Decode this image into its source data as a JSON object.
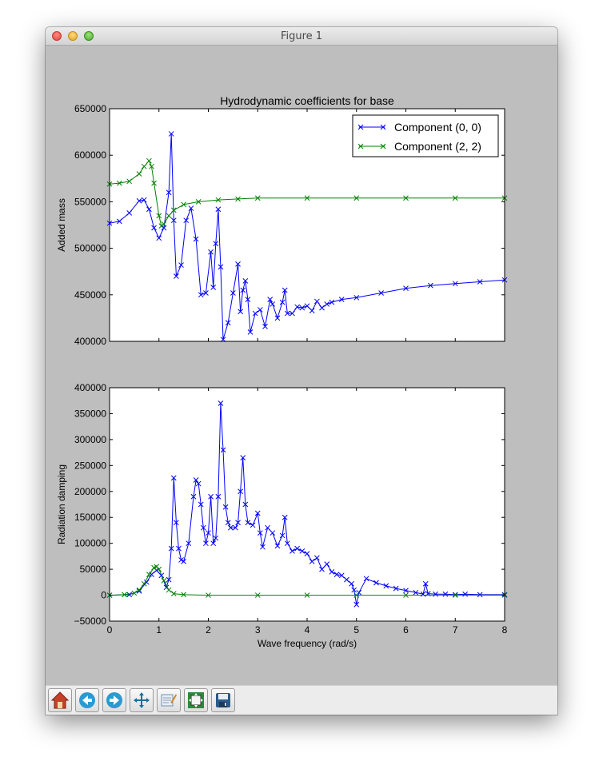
{
  "window": {
    "title": "Figure 1"
  },
  "toolbar": {
    "buttons": [
      {
        "icon": "home-icon"
      },
      {
        "icon": "back-arrow-icon"
      },
      {
        "icon": "forward-arrow-icon"
      },
      {
        "icon": "pan-icon"
      },
      {
        "icon": "zoom-rect-icon"
      },
      {
        "icon": "subplots-config-icon"
      },
      {
        "icon": "save-icon"
      }
    ]
  },
  "chart_data": [
    {
      "type": "line",
      "title": "Hydrodynamic coefficients for base",
      "xlabel": "",
      "ylabel": "Added mass",
      "xlim": [
        0,
        8
      ],
      "ylim": [
        400000,
        650000
      ],
      "yticks": [
        400000,
        450000,
        500000,
        550000,
        600000,
        650000
      ],
      "ytick_labels": [
        "400000",
        "450000",
        "500000",
        "550000",
        "600000",
        "650000"
      ],
      "xticks": [
        0,
        1,
        2,
        3,
        4,
        5,
        6,
        7,
        8
      ],
      "marker": "x",
      "legend": {
        "placement": "top-right"
      },
      "series": [
        {
          "name": "Component (0, 0)",
          "color": "#0000ff",
          "points": [
            [
              0,
              527000
            ],
            [
              0.2,
              529000
            ],
            [
              0.4,
              538000
            ],
            [
              0.6,
              551000
            ],
            [
              0.7,
              552000
            ],
            [
              0.8,
              542000
            ],
            [
              0.9,
              522000
            ],
            [
              1.0,
              511000
            ],
            [
              1.1,
              522000
            ],
            [
              1.2,
              560000
            ],
            [
              1.25,
              623000
            ],
            [
              1.3,
              530000
            ],
            [
              1.35,
              470000
            ],
            [
              1.45,
              482000
            ],
            [
              1.55,
              530000
            ],
            [
              1.65,
              543000
            ],
            [
              1.75,
              510000
            ],
            [
              1.85,
              450000
            ],
            [
              1.95,
              452000
            ],
            [
              2.05,
              496000
            ],
            [
              2.1,
              458000
            ],
            [
              2.15,
              505000
            ],
            [
              2.2,
              542000
            ],
            [
              2.25,
              480000
            ],
            [
              2.3,
              402000
            ],
            [
              2.4,
              420000
            ],
            [
              2.5,
              452000
            ],
            [
              2.6,
              483000
            ],
            [
              2.65,
              432000
            ],
            [
              2.7,
              455000
            ],
            [
              2.75,
              465000
            ],
            [
              2.8,
              445000
            ],
            [
              2.85,
              410000
            ],
            [
              2.95,
              430000
            ],
            [
              3.05,
              434000
            ],
            [
              3.15,
              416000
            ],
            [
              3.25,
              445000
            ],
            [
              3.3,
              440000
            ],
            [
              3.4,
              425000
            ],
            [
              3.5,
              442000
            ],
            [
              3.55,
              455000
            ],
            [
              3.6,
              430000
            ],
            [
              3.7,
              430000
            ],
            [
              3.8,
              437000
            ],
            [
              3.9,
              436000
            ],
            [
              4.0,
              438000
            ],
            [
              4.1,
              433000
            ],
            [
              4.2,
              443000
            ],
            [
              4.3,
              436000
            ],
            [
              4.4,
              440000
            ],
            [
              4.5,
              442000
            ],
            [
              4.7,
              445000
            ],
            [
              5.0,
              447000
            ],
            [
              5.5,
              452000
            ],
            [
              6.0,
              457000
            ],
            [
              6.5,
              460000
            ],
            [
              7.0,
              462000
            ],
            [
              7.5,
              464000
            ],
            [
              8.0,
              466000
            ]
          ]
        },
        {
          "name": "Component (2, 2)",
          "color": "#008000",
          "points": [
            [
              0,
              569000
            ],
            [
              0.2,
              570000
            ],
            [
              0.4,
              572000
            ],
            [
              0.6,
              580000
            ],
            [
              0.7,
              588000
            ],
            [
              0.8,
              594000
            ],
            [
              0.85,
              588000
            ],
            [
              0.9,
              570000
            ],
            [
              1.0,
              535000
            ],
            [
              1.05,
              524000
            ],
            [
              1.1,
              526000
            ],
            [
              1.2,
              535000
            ],
            [
              1.3,
              541000
            ],
            [
              1.5,
              547000
            ],
            [
              1.8,
              550000
            ],
            [
              2.2,
              552000
            ],
            [
              2.6,
              553000
            ],
            [
              3.0,
              554000
            ],
            [
              4.0,
              554000
            ],
            [
              5.0,
              554000
            ],
            [
              6.0,
              554000
            ],
            [
              7.0,
              554000
            ],
            [
              8.0,
              554000
            ]
          ]
        }
      ]
    },
    {
      "type": "line",
      "title": "",
      "xlabel": "Wave frequency (rad/s)",
      "ylabel": "Radiation damping",
      "xlim": [
        0,
        8
      ],
      "ylim": [
        -50000,
        400000
      ],
      "yticks": [
        -50000,
        0,
        50000,
        100000,
        150000,
        200000,
        250000,
        300000,
        350000,
        400000
      ],
      "ytick_labels": [
        "−50000",
        "0",
        "50000",
        "100000",
        "150000",
        "200000",
        "250000",
        "300000",
        "350000",
        "400000"
      ],
      "xticks": [
        0,
        1,
        2,
        3,
        4,
        5,
        6,
        7,
        8
      ],
      "xtick_labels": [
        "0",
        "1",
        "2",
        "3",
        "4",
        "5",
        "6",
        "7",
        "8"
      ],
      "marker": "x",
      "series": [
        {
          "name": "Component (0, 0)",
          "color": "#0000ff",
          "points": [
            [
              0,
              0
            ],
            [
              0.4,
              1000
            ],
            [
              0.6,
              8000
            ],
            [
              0.75,
              25000
            ],
            [
              0.85,
              40000
            ],
            [
              0.95,
              48000
            ],
            [
              1.05,
              38000
            ],
            [
              1.15,
              15000
            ],
            [
              1.2,
              30000
            ],
            [
              1.25,
              90000
            ],
            [
              1.3,
              226000
            ],
            [
              1.35,
              140000
            ],
            [
              1.4,
              90000
            ],
            [
              1.45,
              68000
            ],
            [
              1.5,
              65000
            ],
            [
              1.6,
              100000
            ],
            [
              1.7,
              190000
            ],
            [
              1.75,
              222000
            ],
            [
              1.8,
              215000
            ],
            [
              1.85,
              175000
            ],
            [
              1.9,
              130000
            ],
            [
              1.95,
              100000
            ],
            [
              2.0,
              120000
            ],
            [
              2.05,
              190000
            ],
            [
              2.1,
              100000
            ],
            [
              2.15,
              110000
            ],
            [
              2.2,
              190000
            ],
            [
              2.25,
              370000
            ],
            [
              2.3,
              280000
            ],
            [
              2.35,
              170000
            ],
            [
              2.4,
              140000
            ],
            [
              2.45,
              130000
            ],
            [
              2.55,
              130000
            ],
            [
              2.6,
              140000
            ],
            [
              2.65,
              200000
            ],
            [
              2.7,
              265000
            ],
            [
              2.75,
              175000
            ],
            [
              2.8,
              140000
            ],
            [
              2.9,
              135000
            ],
            [
              3.0,
              158000
            ],
            [
              3.05,
              120000
            ],
            [
              3.1,
              93000
            ],
            [
              3.2,
              130000
            ],
            [
              3.3,
              120000
            ],
            [
              3.4,
              95000
            ],
            [
              3.5,
              115000
            ],
            [
              3.55,
              150000
            ],
            [
              3.6,
              100000
            ],
            [
              3.7,
              85000
            ],
            [
              3.8,
              90000
            ],
            [
              3.9,
              85000
            ],
            [
              4.0,
              80000
            ],
            [
              4.1,
              65000
            ],
            [
              4.2,
              72000
            ],
            [
              4.3,
              50000
            ],
            [
              4.4,
              60000
            ],
            [
              4.5,
              45000
            ],
            [
              4.6,
              40000
            ],
            [
              4.7,
              38000
            ],
            [
              4.8,
              30000
            ],
            [
              4.9,
              22000
            ],
            [
              4.95,
              10000
            ],
            [
              5.0,
              -18000
            ],
            [
              5.05,
              5000
            ],
            [
              5.2,
              32000
            ],
            [
              5.4,
              24000
            ],
            [
              5.6,
              18000
            ],
            [
              5.8,
              13000
            ],
            [
              6.0,
              9000
            ],
            [
              6.2,
              5000
            ],
            [
              6.35,
              2000
            ],
            [
              6.4,
              22000
            ],
            [
              6.45,
              3000
            ],
            [
              6.6,
              2000
            ],
            [
              6.8,
              2000
            ],
            [
              7.0,
              1000
            ],
            [
              7.2,
              2000
            ],
            [
              7.5,
              1000
            ],
            [
              8.0,
              1000
            ]
          ]
        },
        {
          "name": "Component (2, 2)",
          "color": "#008000",
          "points": [
            [
              0,
              0
            ],
            [
              0.3,
              1000
            ],
            [
              0.5,
              4000
            ],
            [
              0.6,
              10000
            ],
            [
              0.7,
              22000
            ],
            [
              0.8,
              40000
            ],
            [
              0.9,
              53000
            ],
            [
              0.95,
              55000
            ],
            [
              1.0,
              50000
            ],
            [
              1.1,
              28000
            ],
            [
              1.2,
              10000
            ],
            [
              1.3,
              3000
            ],
            [
              1.5,
              1000
            ],
            [
              2.0,
              0
            ],
            [
              3.0,
              0
            ],
            [
              4.0,
              0
            ],
            [
              5.0,
              0
            ],
            [
              6.0,
              0
            ],
            [
              7.0,
              0
            ],
            [
              8.0,
              0
            ]
          ]
        }
      ]
    }
  ]
}
